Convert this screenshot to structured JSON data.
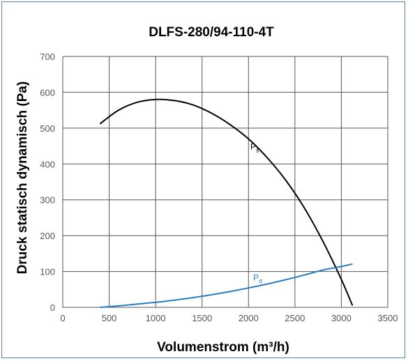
{
  "chart_data": {
    "type": "line",
    "title": "DLFS-280/94-110-4T",
    "xlabel": "Volumenstrom (m³/h)",
    "ylabel": "Druck statisch dynamisch (Pa)",
    "xlim": [
      0,
      3500
    ],
    "ylim": [
      0,
      700
    ],
    "xticks": [
      "0",
      "500",
      "1000",
      "1500",
      "2000",
      "2500",
      "3000",
      "3500"
    ],
    "yticks": [
      "0",
      "100",
      "200",
      "300",
      "400",
      "500",
      "600",
      "700"
    ],
    "grid": true,
    "series": [
      {
        "name": "Ps",
        "label_main": "P",
        "label_sub": "s",
        "color": "#000000",
        "x": [
          400,
          600,
          800,
          1000,
          1200,
          1400,
          1600,
          1800,
          2000,
          2200,
          2400,
          2600,
          2800,
          3000,
          3120
        ],
        "y": [
          512,
          550,
          572,
          580,
          577,
          565,
          542,
          510,
          470,
          418,
          355,
          278,
          185,
          78,
          5
        ]
      },
      {
        "name": "Pd",
        "label_main": "P",
        "label_sub": "d",
        "color": "#2a7bbf",
        "x": [
          400,
          600,
          800,
          1000,
          1200,
          1400,
          1600,
          1800,
          2000,
          2200,
          2400,
          2600,
          2800,
          3000,
          3120
        ],
        "y": [
          0,
          4,
          9,
          14,
          20,
          27,
          35,
          44,
          54,
          65,
          77,
          90,
          104,
          114,
          121
        ]
      }
    ]
  }
}
